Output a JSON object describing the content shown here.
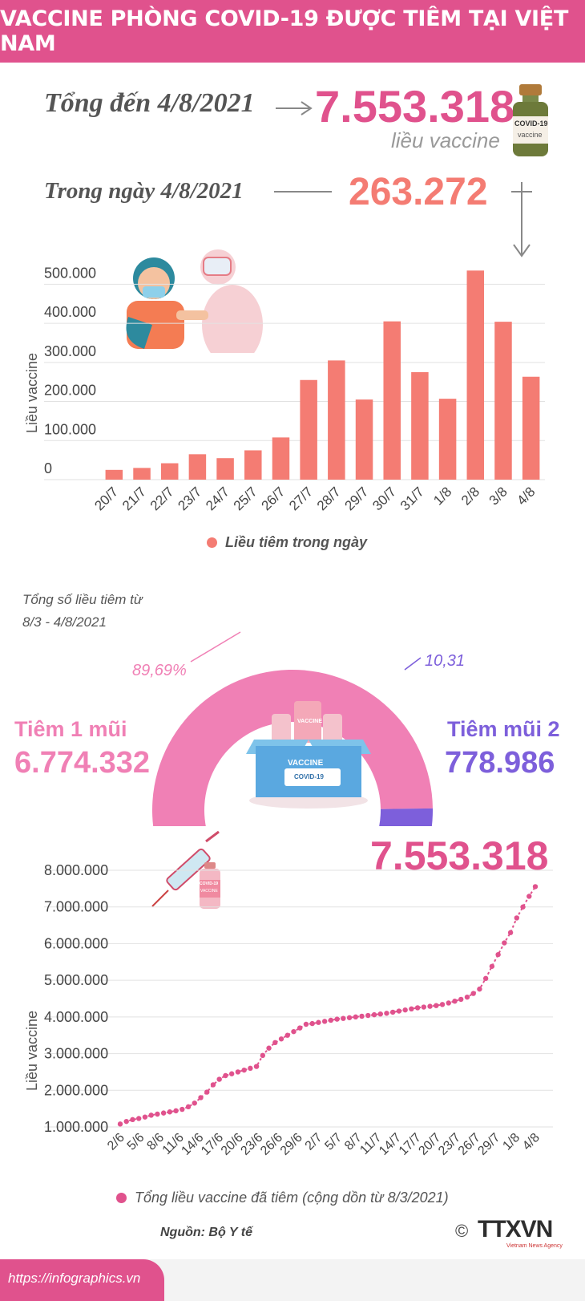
{
  "header": {
    "title": "VACCINE PHÒNG COVID-19 ĐƯỢC TIÊM TẠI VIỆT NAM"
  },
  "summary": {
    "total_label": "Tổng đến 4/8/2021",
    "total_value": "7.553.318",
    "total_unit": "liều vaccine",
    "day_label": "Trong ngày 4/8/2021",
    "day_value": "263.272"
  },
  "colors": {
    "pink": "#e0528d",
    "salmon": "#f47c73",
    "purple": "#7d5fdb",
    "light_pink": "#f080b5"
  },
  "chart_data": [
    {
      "type": "bar",
      "ylabel": "Liều vaccine",
      "ylim": [
        0,
        550000
      ],
      "yticks": [
        "0",
        "100.000",
        "200.000",
        "300.000",
        "400.000",
        "500.000"
      ],
      "ytick_values": [
        0,
        100000,
        200000,
        300000,
        400000,
        500000
      ],
      "categories": [
        "20/7",
        "21/7",
        "22/7",
        "23/7",
        "24/7",
        "25/7",
        "26/7",
        "27/7",
        "28/7",
        "29/7",
        "30/7",
        "31/7",
        "1/8",
        "2/8",
        "3/8",
        "4/8"
      ],
      "series": [
        {
          "name": "Liều tiêm trong ngày",
          "values": [
            25000,
            30000,
            42000,
            65000,
            55000,
            75000,
            108000,
            255000,
            305000,
            205000,
            405000,
            275000,
            207000,
            535000,
            404000,
            263272
          ]
        }
      ]
    },
    {
      "type": "pie",
      "title": "Tổng số liều tiêm từ 8/3 - 4/8/2021",
      "slices": [
        {
          "label": "Tiêm 1 mũi",
          "value": 6774332,
          "value_text": "6.774.332",
          "percent": "89,69%"
        },
        {
          "label": "Tiêm mũi 2",
          "value": 778986,
          "value_text": "778.986",
          "percent": "10,31%"
        }
      ]
    },
    {
      "type": "line",
      "ylabel": "Liều vaccine",
      "ylim": [
        1000000,
        8000000
      ],
      "yticks": [
        "1.000.000",
        "2.000.000",
        "3.000.000",
        "4.000.000",
        "5.000.000",
        "6.000.000",
        "7.000.000",
        "8.000.000"
      ],
      "ytick_values": [
        1000000,
        2000000,
        3000000,
        4000000,
        5000000,
        6000000,
        7000000,
        8000000
      ],
      "xticks": [
        "2/6",
        "5/6",
        "8/6",
        "11/6",
        "14/6",
        "17/6",
        "20/6",
        "23/6",
        "26/6",
        "29/6",
        "2/7",
        "5/7",
        "8/7",
        "11/7",
        "14/7",
        "17/7",
        "20/7",
        "23/7",
        "26/7",
        "29/7",
        "1/8",
        "4/8"
      ],
      "final_value": "7.553.318",
      "series": [
        {
          "name": "Tổng liều vaccine đã tiêm (cộng dồn từ 8/3/2021)",
          "values": [
            1080000,
            1150000,
            1200000,
            1230000,
            1270000,
            1320000,
            1350000,
            1380000,
            1410000,
            1440000,
            1480000,
            1550000,
            1650000,
            1800000,
            1950000,
            2150000,
            2300000,
            2400000,
            2450000,
            2500000,
            2550000,
            2600000,
            2650000,
            2950000,
            3150000,
            3300000,
            3400000,
            3500000,
            3600000,
            3700000,
            3800000,
            3820000,
            3850000,
            3880000,
            3910000,
            3940000,
            3960000,
            3980000,
            4000000,
            4020000,
            4040000,
            4060000,
            4080000,
            4100000,
            4130000,
            4160000,
            4190000,
            4220000,
            4250000,
            4270000,
            4290000,
            4310000,
            4340000,
            4380000,
            4430000,
            4480000,
            4540000,
            4640000,
            4760000,
            5050000,
            5380000,
            5700000,
            6020000,
            6300000,
            6700000,
            7000000,
            7290000,
            7553318
          ]
        }
      ]
    }
  ],
  "footer": {
    "source": "Nguồn: Bộ Y tế",
    "url": "https://infographics.vn",
    "logo": "TTXVN",
    "logo_sub": "Vietnam News Agency",
    "copyright": "©"
  },
  "vial_label": "COVID-19",
  "vial_sub": "vaccine",
  "box_label": "VACCINE",
  "box_sub": "COVID-19",
  "box_bottle": "VACCINE",
  "small_bottle": "COVID-19",
  "small_bottle_sub": "VACCINE"
}
